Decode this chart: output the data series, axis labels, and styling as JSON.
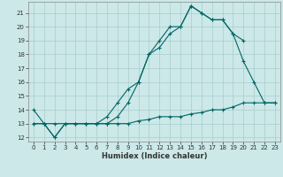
{
  "xlabel": "Humidex (Indice chaleur)",
  "bg_color": "#cce8e8",
  "grid_color": "#aacccc",
  "line_color": "#006666",
  "xlim": [
    -0.5,
    23.5
  ],
  "ylim": [
    11.7,
    21.8
  ],
  "yticks": [
    12,
    13,
    14,
    15,
    16,
    17,
    18,
    19,
    20,
    21
  ],
  "xticks": [
    0,
    1,
    2,
    3,
    4,
    5,
    6,
    7,
    8,
    9,
    10,
    11,
    12,
    13,
    14,
    15,
    16,
    17,
    18,
    19,
    20,
    21,
    22,
    23
  ],
  "line1_x": [
    0,
    1,
    2,
    3,
    4,
    5,
    6,
    7,
    8,
    9,
    10,
    11,
    12,
    13,
    14,
    15,
    16,
    17,
    18,
    19,
    20,
    21,
    22,
    23
  ],
  "line1_y": [
    14.0,
    13.0,
    12.0,
    13.0,
    13.0,
    13.0,
    13.0,
    13.5,
    14.5,
    15.5,
    16.0,
    18.0,
    19.0,
    20.0,
    20.0,
    21.5,
    21.0,
    20.5,
    20.5,
    19.5,
    17.5,
    16.0,
    14.5,
    14.5
  ],
  "line2_x": [
    0,
    1,
    2,
    3,
    4,
    5,
    6,
    7,
    8,
    9,
    10,
    11,
    12,
    13,
    14,
    15,
    16,
    17,
    18,
    19,
    20
  ],
  "line2_y": [
    13.0,
    13.0,
    12.0,
    13.0,
    13.0,
    13.0,
    13.0,
    13.0,
    13.5,
    14.5,
    16.0,
    18.0,
    18.5,
    19.5,
    20.0,
    21.5,
    21.0,
    20.5,
    20.5,
    19.5,
    19.0
  ],
  "line3_x": [
    0,
    1,
    2,
    3,
    4,
    5,
    6,
    7,
    8,
    9,
    10,
    11,
    12,
    13,
    14,
    15,
    16,
    17,
    18,
    19,
    20,
    21,
    22,
    23
  ],
  "line3_y": [
    13.0,
    13.0,
    13.0,
    13.0,
    13.0,
    13.0,
    13.0,
    13.0,
    13.0,
    13.0,
    13.2,
    13.3,
    13.5,
    13.5,
    13.5,
    13.7,
    13.8,
    14.0,
    14.0,
    14.2,
    14.5,
    14.5,
    14.5,
    14.5
  ]
}
